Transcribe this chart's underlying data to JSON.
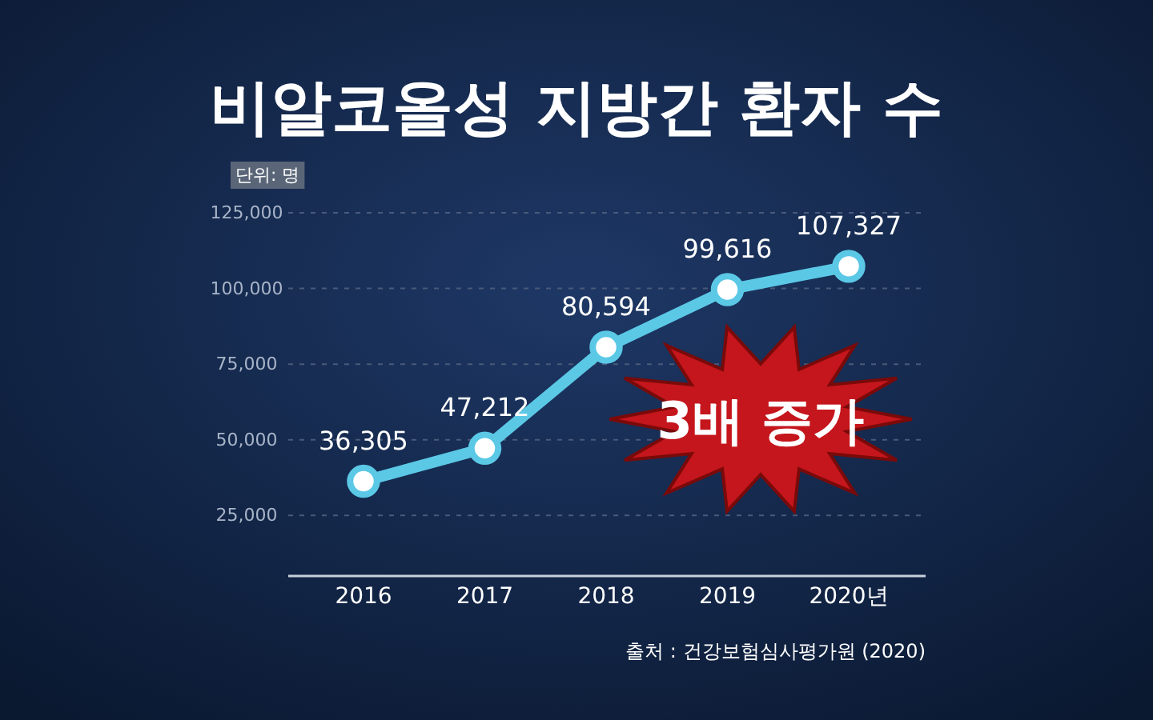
{
  "chart_data": {
    "type": "line",
    "title": "비알코올성 지방간 환자 수",
    "ylabel": "단위: 명",
    "categories": [
      "2016",
      "2017",
      "2018",
      "2019",
      "2020년"
    ],
    "series": [
      {
        "color": "#5bc8e6",
        "values": [
          36305,
          47212,
          80594,
          99616,
          107327
        ],
        "value_labels": [
          "36,305",
          "47,212",
          "80,594",
          "99,616",
          "107,327"
        ]
      }
    ],
    "ylim": [
      5000,
      125000
    ],
    "yticks": [
      {
        "value": 25000,
        "label": "25,000"
      },
      {
        "value": 50000,
        "label": "50,000"
      },
      {
        "value": 75000,
        "label": "75,000"
      },
      {
        "value": 100000,
        "label": "100,000"
      },
      {
        "value": 125000,
        "label": "125,000"
      }
    ],
    "grid": "y",
    "marker": "circle",
    "line_style": "solid",
    "annotations": [
      "3배 증가",
      "출처 : 건강보험심사평가원 (2020)"
    ]
  }
}
